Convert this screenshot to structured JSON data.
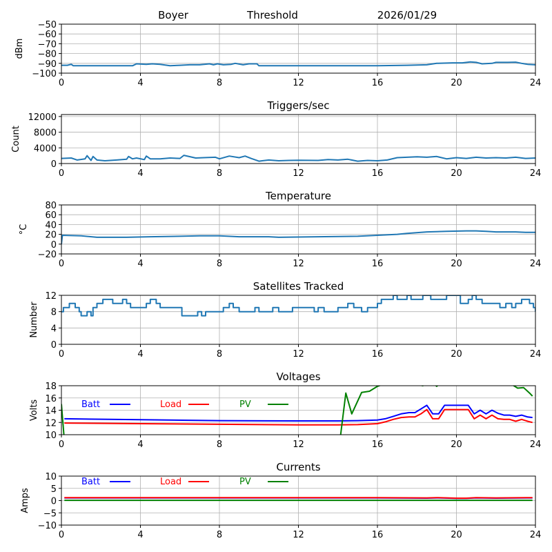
{
  "header": {
    "station": "Boyer",
    "mode": "Threshold",
    "date": "2026/01/29"
  },
  "colors": {
    "series_default": "#1f77b4",
    "batt": "#0000ff",
    "load": "#ff0000",
    "pv": "#008000",
    "grid": "#b0b0b0"
  },
  "chart_data": [
    {
      "type": "line",
      "title": "",
      "ylabel": "dBm",
      "xlabel": "",
      "xlim": [
        0,
        24
      ],
      "ylim": [
        -100,
        -50
      ],
      "xticks": [
        "0",
        "4",
        "8",
        "12",
        "16",
        "20",
        "24"
      ],
      "yticks": [
        "−50",
        "−60",
        "−70",
        "−80",
        "−90",
        "−100"
      ],
      "ytick_values": [
        -50,
        -60,
        -70,
        -80,
        -90,
        -100
      ],
      "grid": true,
      "series": [
        {
          "name": "Threshold",
          "color": "#1f77b4",
          "x": [
            0,
            0.3,
            0.5,
            0.6,
            1,
            2,
            3,
            3.6,
            3.8,
            4.3,
            4.6,
            5,
            5.5,
            6,
            6.5,
            7,
            7.5,
            7.7,
            7.9,
            8.2,
            8.6,
            8.8,
            9.2,
            9.5,
            9.9,
            10,
            12,
            14,
            16,
            17.5,
            18.5,
            19,
            19.8,
            20.3,
            20.7,
            21,
            21.3,
            21.8,
            22,
            22.6,
            23,
            23.3,
            23.6,
            24
          ],
          "y": [
            -92,
            -92,
            -91,
            -92.5,
            -92.5,
            -92.5,
            -92.5,
            -92.5,
            -90.5,
            -91,
            -90.5,
            -91,
            -92.5,
            -92,
            -91.5,
            -91.5,
            -90.5,
            -91.5,
            -90.5,
            -91.5,
            -91,
            -90,
            -91.5,
            -90.5,
            -90.5,
            -92.5,
            -92.5,
            -92.5,
            -92.5,
            -92,
            -91.5,
            -90,
            -89.5,
            -89.5,
            -88.5,
            -89,
            -90.5,
            -90,
            -89,
            -89,
            -88.8,
            -90,
            -91,
            -91.5
          ]
        }
      ]
    },
    {
      "type": "line",
      "title": "Triggers/sec",
      "ylabel": "Count",
      "xlabel": "",
      "xlim": [
        0,
        24
      ],
      "ylim": [
        0,
        12500
      ],
      "xticks": [
        "0",
        "4",
        "8",
        "12",
        "16",
        "20",
        "24"
      ],
      "yticks": [
        "12000",
        "8000",
        "4000",
        "0"
      ],
      "ytick_values": [
        12000,
        8000,
        4000,
        0
      ],
      "grid": true,
      "series": [
        {
          "name": "Triggers",
          "color": "#1f77b4",
          "x": [
            0,
            0.5,
            0.8,
            1.2,
            1.3,
            1.5,
            1.6,
            1.8,
            2.2,
            2.8,
            3.3,
            3.4,
            3.6,
            3.8,
            4.2,
            4.3,
            4.5,
            5,
            5.5,
            6,
            6.2,
            6.8,
            7.2,
            7.8,
            8,
            8.5,
            9,
            9.3,
            9.6,
            10,
            10.5,
            11,
            11.5,
            12,
            13,
            13.5,
            14,
            14.5,
            15,
            15.5,
            16,
            16.5,
            17,
            17.5,
            18,
            18.5,
            19,
            19.5,
            20,
            20.5,
            21,
            21.5,
            22,
            22.5,
            23,
            23.5,
            24
          ],
          "y": [
            1300,
            1400,
            900,
            1200,
            2000,
            800,
            1800,
            900,
            700,
            900,
            1100,
            1800,
            1200,
            1400,
            1000,
            1900,
            1200,
            1200,
            1400,
            1300,
            2100,
            1400,
            1500,
            1600,
            1200,
            1900,
            1500,
            1900,
            1300,
            600,
            900,
            700,
            800,
            850,
            800,
            1000,
            900,
            1100,
            600,
            800,
            700,
            900,
            1500,
            1600,
            1700,
            1600,
            1800,
            1200,
            1500,
            1300,
            1600,
            1400,
            1500,
            1400,
            1600,
            1300,
            1400
          ]
        }
      ]
    },
    {
      "type": "line",
      "title": "Temperature",
      "ylabel": "°C",
      "xlabel": "",
      "xlim": [
        0,
        24
      ],
      "ylim": [
        -20,
        80
      ],
      "xticks": [
        "0",
        "4",
        "8",
        "12",
        "16",
        "20",
        "24"
      ],
      "yticks": [
        "80",
        "60",
        "40",
        "20",
        "0",
        "−20"
      ],
      "ytick_values": [
        80,
        60,
        40,
        20,
        0,
        -20
      ],
      "grid": true,
      "series": [
        {
          "name": "Temperature",
          "color": "#1f77b4",
          "x": [
            0,
            0.05,
            1,
            1.8,
            3.3,
            4.5,
            6,
            7,
            8,
            9,
            10.5,
            11,
            13,
            15,
            16,
            17,
            17.5,
            18.5,
            19.5,
            20.5,
            21,
            21.5,
            22,
            23,
            23.5,
            24
          ],
          "y": [
            0,
            18,
            17,
            14,
            14,
            15,
            16,
            17,
            17,
            15,
            15,
            14,
            15,
            16,
            18,
            20,
            22,
            25,
            26,
            27,
            27,
            26,
            25,
            25,
            24,
            24
          ]
        }
      ]
    },
    {
      "type": "line",
      "title": "Satellites Tracked",
      "ylabel": "Number",
      "xlabel": "",
      "xlim": [
        0,
        24
      ],
      "ylim": [
        0,
        12
      ],
      "xticks": [
        "0",
        "4",
        "8",
        "12",
        "16",
        "20",
        "24"
      ],
      "yticks": [
        "12",
        "8",
        "4",
        "0"
      ],
      "ytick_values": [
        12,
        8,
        4,
        0
      ],
      "grid": true,
      "series": [
        {
          "name": "Satellites",
          "color": "#1f77b4",
          "step": true,
          "x": [
            0,
            0.1,
            0.4,
            0.7,
            0.9,
            1.0,
            1.3,
            1.5,
            1.6,
            1.8,
            2.1,
            2.3,
            2.6,
            3.1,
            3.3,
            3.5,
            3.7,
            4.3,
            4.5,
            4.8,
            5.0,
            5.2,
            6.1,
            6.9,
            7.1,
            7.3,
            8.0,
            8.2,
            8.5,
            8.7,
            9.0,
            9.8,
            10.0,
            10.7,
            11.0,
            11.7,
            12.0,
            12.8,
            13.0,
            13.3,
            14.0,
            14.5,
            14.8,
            15.2,
            15.5,
            16.0,
            16.2,
            16.8,
            17.0,
            17.5,
            17.7,
            18.3,
            18.7,
            19.5,
            19.9,
            20.0,
            20.2,
            20.6,
            20.8,
            21.0,
            21.3,
            22.2,
            22.5,
            22.8,
            23.0,
            23.3,
            23.7,
            23.9,
            24.0
          ],
          "y": [
            8,
            9,
            10,
            9,
            8,
            7,
            8,
            7,
            9,
            10,
            11,
            11,
            10,
            11,
            10,
            9,
            9,
            10,
            11,
            10,
            9,
            9,
            7,
            8,
            7,
            8,
            8,
            9,
            10,
            9,
            8,
            9,
            8,
            9,
            8,
            9,
            9,
            8,
            9,
            8,
            9,
            10,
            9,
            8,
            9,
            10,
            11,
            12,
            11,
            12,
            11,
            12,
            11,
            12,
            12,
            12,
            10,
            11,
            12,
            11,
            10,
            9,
            10,
            9,
            10,
            11,
            10,
            9,
            8
          ]
        }
      ]
    },
    {
      "type": "line",
      "title": "Voltages",
      "ylabel": "Volts",
      "xlabel": "",
      "xlim": [
        0,
        24
      ],
      "ylim": [
        10,
        18
      ],
      "xticks": [
        "0",
        "4",
        "8",
        "12",
        "16",
        "20",
        "24"
      ],
      "yticks": [
        "18",
        "16",
        "14",
        "12",
        "10"
      ],
      "ytick_values": [
        18,
        16,
        14,
        12,
        10
      ],
      "grid": true,
      "legend": [
        {
          "label": "Batt",
          "color": "#0000ff"
        },
        {
          "label": "Load",
          "color": "#ff0000"
        },
        {
          "label": "PV",
          "color": "#008000"
        }
      ],
      "legend_placement": "top",
      "series": [
        {
          "name": "Batt",
          "color": "#0000ff",
          "x": [
            0.15,
            4,
            8,
            12,
            14,
            15,
            16,
            16.4,
            16.8,
            17.2,
            17.6,
            17.9,
            18.2,
            18.5,
            18.8,
            19.1,
            19.4,
            20,
            20.6,
            20.9,
            21.2,
            21.5,
            21.8,
            22.1,
            22.4,
            22.7,
            23,
            23.3,
            23.6,
            23.85
          ],
          "y": [
            12.6,
            12.45,
            12.3,
            12.25,
            12.25,
            12.3,
            12.4,
            12.6,
            13.0,
            13.4,
            13.6,
            13.6,
            14.2,
            14.8,
            13.4,
            13.4,
            14.8,
            14.8,
            14.8,
            13.4,
            14.0,
            13.4,
            14.0,
            13.5,
            13.2,
            13.2,
            13.0,
            13.2,
            12.9,
            12.8
          ]
        },
        {
          "name": "Load",
          "color": "#ff0000",
          "x": [
            0.15,
            4,
            8,
            12,
            14,
            15,
            16,
            16.4,
            16.8,
            17.2,
            17.6,
            17.9,
            18.2,
            18.5,
            18.8,
            19.1,
            19.4,
            20,
            20.6,
            20.9,
            21.2,
            21.5,
            21.8,
            22.1,
            22.4,
            22.7,
            23,
            23.3,
            23.6,
            23.85
          ],
          "y": [
            11.9,
            11.8,
            11.7,
            11.6,
            11.6,
            11.65,
            11.8,
            12.1,
            12.5,
            12.8,
            12.9,
            12.9,
            13.4,
            14.1,
            12.6,
            12.6,
            14.1,
            14.1,
            14.1,
            12.6,
            13.2,
            12.6,
            13.2,
            12.6,
            12.5,
            12.5,
            12.2,
            12.5,
            12.2,
            12.0
          ]
        },
        {
          "name": "PV",
          "color": "#008000",
          "x": [
            0,
            0.15,
            14.1,
            14.4,
            14.7,
            15.2,
            15.6,
            16,
            17,
            18,
            18.3,
            18.7,
            19,
            19.3,
            20,
            22,
            22.8,
            23.1,
            23.4,
            23.7,
            23.85
          ],
          "y": [
            15,
            9,
            9,
            16.8,
            13.4,
            16.9,
            17.1,
            17.9,
            19,
            18.2,
            18.0,
            18.8,
            17.9,
            18.8,
            19,
            19,
            18.2,
            17.6,
            17.7,
            16.8,
            16.3
          ]
        }
      ]
    },
    {
      "type": "line",
      "title": "Currents",
      "ylabel": "Amps",
      "xlabel": "",
      "xlim": [
        0,
        24
      ],
      "ylim": [
        -10,
        10
      ],
      "xticks": [
        "0",
        "4",
        "8",
        "12",
        "16",
        "20",
        "24"
      ],
      "yticks": [
        "10",
        "5",
        "0",
        "−5",
        "−10"
      ],
      "ytick_values": [
        10,
        5,
        0,
        -5,
        -10
      ],
      "grid": true,
      "legend": [
        {
          "label": "Batt",
          "color": "#0000ff"
        },
        {
          "label": "Load",
          "color": "#ff0000"
        },
        {
          "label": "PV",
          "color": "#008000"
        }
      ],
      "legend_placement": "top",
      "series": [
        {
          "name": "Batt",
          "color": "#0000ff",
          "x": [
            0.15,
            8,
            16,
            18.5,
            19,
            20,
            20.5,
            21,
            22,
            23.85
          ],
          "y": [
            1.1,
            1.1,
            1.1,
            1.0,
            1.1,
            0.9,
            0.9,
            1.1,
            1.0,
            1.1
          ]
        },
        {
          "name": "Load",
          "color": "#ff0000",
          "x": [
            0.15,
            8,
            16,
            18.5,
            19,
            20,
            20.5,
            21,
            22,
            23.85
          ],
          "y": [
            1.2,
            1.2,
            1.2,
            1.1,
            1.2,
            1.0,
            1.0,
            1.2,
            1.1,
            1.2
          ]
        },
        {
          "name": "PV",
          "color": "#008000",
          "x": [
            0.15,
            23.85
          ],
          "y": [
            0.1,
            0.1
          ]
        }
      ]
    }
  ]
}
